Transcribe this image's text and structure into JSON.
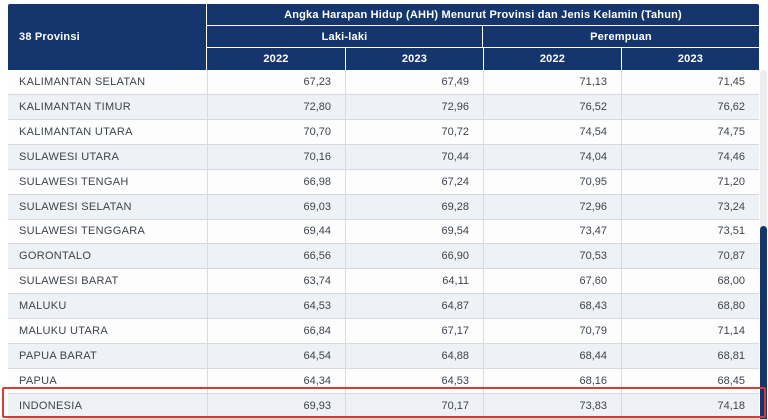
{
  "table": {
    "row_header": "38 Provinsi",
    "title": "Angka Harapan Hidup (AHH) Menurut Provinsi dan Jenis Kelamin (Tahun)",
    "groups": [
      {
        "label": "Laki-laki"
      },
      {
        "label": "Perempuan"
      }
    ],
    "year_columns": [
      "2022",
      "2023",
      "2022",
      "2023"
    ],
    "rows": [
      {
        "province": "KALIMANTAN SELATAN",
        "values": [
          "67,23",
          "67,49",
          "71,13",
          "71,45"
        ],
        "highlight": false
      },
      {
        "province": "KALIMANTAN TIMUR",
        "values": [
          "72,80",
          "72,96",
          "76,52",
          "76,62"
        ],
        "highlight": false
      },
      {
        "province": "KALIMANTAN UTARA",
        "values": [
          "70,70",
          "70,72",
          "74,54",
          "74,75"
        ],
        "highlight": false
      },
      {
        "province": "SULAWESI UTARA",
        "values": [
          "70,16",
          "70,44",
          "74,04",
          "74,46"
        ],
        "highlight": false
      },
      {
        "province": "SULAWESI TENGAH",
        "values": [
          "66,98",
          "67,24",
          "70,95",
          "71,20"
        ],
        "highlight": false
      },
      {
        "province": "SULAWESI SELATAN",
        "values": [
          "69,03",
          "69,28",
          "72,96",
          "73,24"
        ],
        "highlight": false
      },
      {
        "province": "SULAWESI TENGGARA",
        "values": [
          "69,44",
          "69,54",
          "73,47",
          "73,51"
        ],
        "highlight": false
      },
      {
        "province": "GORONTALO",
        "values": [
          "66,56",
          "66,90",
          "70,53",
          "70,87"
        ],
        "highlight": false
      },
      {
        "province": "SULAWESI BARAT",
        "values": [
          "63,74",
          "64,11",
          "67,60",
          "68,00"
        ],
        "highlight": false
      },
      {
        "province": "MALUKU",
        "values": [
          "64,53",
          "64,87",
          "68,43",
          "68,80"
        ],
        "highlight": false
      },
      {
        "province": "MALUKU UTARA",
        "values": [
          "66,84",
          "67,17",
          "70,79",
          "71,14"
        ],
        "highlight": false
      },
      {
        "province": "PAPUA BARAT",
        "values": [
          "64,54",
          "64,88",
          "68,44",
          "68,81"
        ],
        "highlight": false
      },
      {
        "province": "PAPUA",
        "values": [
          "64,34",
          "64,53",
          "68,16",
          "68,45"
        ],
        "highlight": false
      },
      {
        "province": "INDONESIA",
        "values": [
          "69,93",
          "70,17",
          "73,83",
          "74,18"
        ],
        "highlight": true
      }
    ]
  },
  "colors": {
    "header_navy": "#15366d",
    "highlight_red": "#d83a35",
    "row_alt_bg": "#eef1f6",
    "row_bg": "#fdfdfe",
    "grid_line": "#d5d9df",
    "body_text": "#3d444d"
  }
}
